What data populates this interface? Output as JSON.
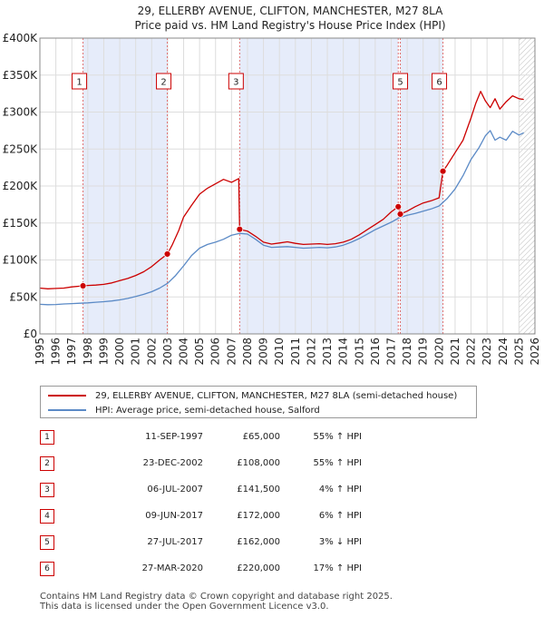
{
  "chart_data": {
    "type": "line",
    "title": "29, ELLERBY AVENUE, CLIFTON, MANCHESTER, M27 8LA",
    "subtitle": "Price paid vs. HM Land Registry's House Price Index (HPI)",
    "xlim": [
      1995,
      2026
    ],
    "ylim": [
      0,
      400000
    ],
    "x_ticks": [
      "1995",
      "1996",
      "1997",
      "1998",
      "1999",
      "2000",
      "2001",
      "2002",
      "2003",
      "2004",
      "2005",
      "2006",
      "2007",
      "2008",
      "2009",
      "2010",
      "2011",
      "2012",
      "2013",
      "2014",
      "2015",
      "2016",
      "2017",
      "2018",
      "2019",
      "2020",
      "2021",
      "2022",
      "2023",
      "2024",
      "2025",
      "2026"
    ],
    "y_ticks": [
      {
        "value": 0,
        "label": "£0"
      },
      {
        "value": 50000,
        "label": "£50K"
      },
      {
        "value": 100000,
        "label": "£100K"
      },
      {
        "value": 150000,
        "label": "£150K"
      },
      {
        "value": 200000,
        "label": "£200K"
      },
      {
        "value": 250000,
        "label": "£250K"
      },
      {
        "value": 300000,
        "label": "£300K"
      },
      {
        "value": 350000,
        "label": "£350K"
      },
      {
        "value": 400000,
        "label": "£400K"
      }
    ],
    "shaded_periods": [
      [
        1997.7,
        2002.98
      ],
      [
        2007.51,
        2017.44
      ],
      [
        2017.57,
        2020.24
      ]
    ],
    "future_hatch_from": 2025.0,
    "series": [
      {
        "name": "29, ELLERBY AVENUE, CLIFTON, MANCHESTER, M27 8LA (semi-detached house)",
        "color": "#cc0000",
        "x": [
          1995.0,
          1995.5,
          1996.0,
          1996.5,
          1997.0,
          1997.5,
          1997.7,
          1998.0,
          1998.5,
          1999.0,
          1999.5,
          2000.0,
          2000.5,
          2001.0,
          2001.5,
          2002.0,
          2002.5,
          2002.98,
          2003.3,
          2003.7,
          2004.0,
          2004.5,
          2005.0,
          2005.5,
          2006.0,
          2006.5,
          2007.0,
          2007.45,
          2007.51,
          2008.0,
          2008.5,
          2009.0,
          2009.5,
          2010.0,
          2010.5,
          2011.0,
          2011.5,
          2012.0,
          2012.5,
          2013.0,
          2013.5,
          2014.0,
          2014.5,
          2015.0,
          2015.5,
          2016.0,
          2016.5,
          2017.0,
          2017.44,
          2017.57,
          2018.0,
          2018.5,
          2019.0,
          2019.5,
          2020.0,
          2020.24,
          2020.5,
          2021.0,
          2021.5,
          2022.0,
          2022.3,
          2022.6,
          2022.9,
          2023.2,
          2023.5,
          2023.8,
          2024.2,
          2024.6,
          2025.0,
          2025.3
        ],
        "values": [
          62000,
          61000,
          61500,
          62000,
          63500,
          64500,
          65000,
          65500,
          66000,
          67000,
          69000,
          72000,
          75000,
          79000,
          84000,
          91000,
          100000,
          108000,
          121000,
          140000,
          158000,
          174000,
          189000,
          197000,
          203000,
          209000,
          205000,
          210000,
          141500,
          139000,
          132000,
          124000,
          121500,
          123000,
          124500,
          122500,
          121000,
          121500,
          122000,
          121000,
          122000,
          124000,
          128000,
          134000,
          141000,
          148000,
          155000,
          165000,
          172000,
          162000,
          166000,
          172000,
          177000,
          180000,
          184000,
          220000,
          228000,
          245000,
          262000,
          292000,
          312000,
          328000,
          315000,
          306000,
          318000,
          304000,
          314000,
          322000,
          318000,
          317000
        ]
      },
      {
        "name": "HPI: Average price, semi-detached house, Salford",
        "color": "#5b8ac6",
        "x": [
          1995.0,
          1995.5,
          1996.0,
          1996.5,
          1997.0,
          1997.5,
          1998.0,
          1998.5,
          1999.0,
          1999.5,
          2000.0,
          2000.5,
          2001.0,
          2001.5,
          2002.0,
          2002.5,
          2003.0,
          2003.5,
          2004.0,
          2004.5,
          2005.0,
          2005.5,
          2006.0,
          2006.5,
          2007.0,
          2007.5,
          2008.0,
          2008.5,
          2009.0,
          2009.5,
          2010.0,
          2010.5,
          2011.0,
          2011.5,
          2012.0,
          2012.5,
          2013.0,
          2013.5,
          2014.0,
          2014.5,
          2015.0,
          2015.5,
          2016.0,
          2016.5,
          2017.0,
          2017.5,
          2018.0,
          2018.5,
          2019.0,
          2019.5,
          2020.0,
          2020.5,
          2021.0,
          2021.5,
          2022.0,
          2022.5,
          2022.9,
          2023.2,
          2023.5,
          2023.8,
          2024.2,
          2024.6,
          2025.0,
          2025.3
        ],
        "values": [
          40000,
          39500,
          39800,
          40500,
          41000,
          41500,
          42000,
          42800,
          43500,
          44500,
          46000,
          48000,
          50500,
          53500,
          57000,
          62000,
          68500,
          79000,
          92000,
          106000,
          116000,
          121000,
          124000,
          128000,
          133500,
          136000,
          135000,
          128000,
          120000,
          117000,
          117500,
          118000,
          117000,
          116000,
          116500,
          117000,
          116500,
          117500,
          120000,
          124000,
          129000,
          135000,
          141000,
          146000,
          151000,
          157000,
          160500,
          163000,
          166000,
          169000,
          173000,
          183000,
          196000,
          214000,
          236000,
          252000,
          268000,
          275000,
          262000,
          266000,
          262000,
          274000,
          269000,
          272000
        ]
      }
    ],
    "sales": [
      {
        "n": "1",
        "date": "11-SEP-1997",
        "x": 1997.7,
        "price_value": 65000,
        "price": "£65,000",
        "hpi": "55% ↑ HPI"
      },
      {
        "n": "2",
        "date": "23-DEC-2002",
        "x": 2002.98,
        "price_value": 108000,
        "price": "£108,000",
        "hpi": "55% ↑ HPI"
      },
      {
        "n": "3",
        "date": "06-JUL-2007",
        "x": 2007.51,
        "price_value": 141500,
        "price": "£141,500",
        "hpi": "4% ↑ HPI"
      },
      {
        "n": "4",
        "date": "09-JUN-2017",
        "x": 2017.44,
        "price_value": 172000,
        "price": "£172,000",
        "hpi": "6% ↑ HPI"
      },
      {
        "n": "5",
        "date": "27-JUL-2017",
        "x": 2017.57,
        "price_value": 162000,
        "price": "£162,000",
        "hpi": "3% ↓ HPI"
      },
      {
        "n": "6",
        "date": "27-MAR-2020",
        "x": 2020.24,
        "price_value": 220000,
        "price": "£220,000",
        "hpi": "17% ↑ HPI"
      }
    ],
    "chart_labels": [
      "1",
      "2",
      "3",
      "5",
      "6"
    ]
  },
  "footer": {
    "line1": "Contains HM Land Registry data © Crown copyright and database right 2025.",
    "line2": "This data is licensed under the Open Government Licence v3.0."
  }
}
